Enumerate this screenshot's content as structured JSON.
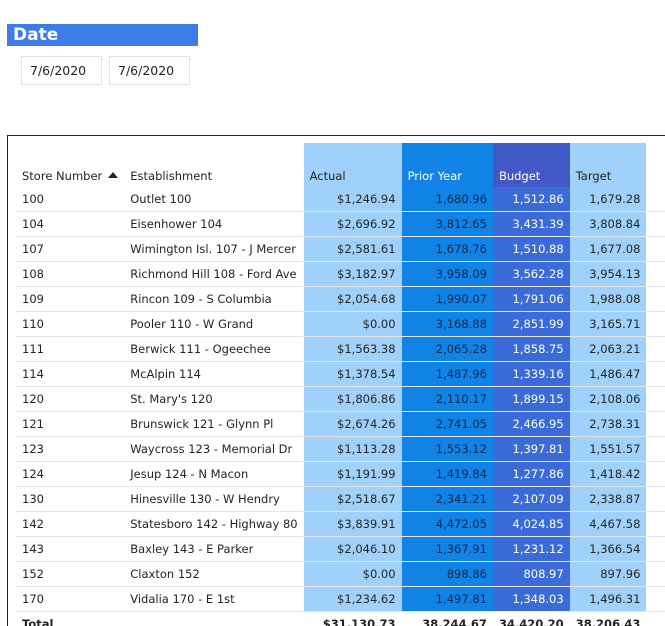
{
  "date_filter": {
    "title": "Date",
    "start": "7/6/2020",
    "end": "7/6/2020"
  },
  "table": {
    "headers": {
      "store_number": "Store Number",
      "establishment": "Establishment",
      "actual": "Actual",
      "prior_year": "Prior Year",
      "budget": "Budget",
      "target": "Target"
    },
    "sort": "ascending",
    "rows": [
      {
        "store": "100",
        "establishment": "Outlet 100",
        "actual": "$1,246.94",
        "prior": "1,680.96",
        "budget": "1,512.86",
        "target": "1,679.28"
      },
      {
        "store": "104",
        "establishment": "Eisenhower 104",
        "actual": "$2,696.92",
        "prior": "3,812.65",
        "budget": "3,431.39",
        "target": "3,808.84"
      },
      {
        "store": "107",
        "establishment": "Wimington Isl. 107 - J Mercer",
        "actual": "$2,581.61",
        "prior": "1,678.76",
        "budget": "1,510.88",
        "target": "1,677.08"
      },
      {
        "store": "108",
        "establishment": "Richmond Hill 108 - Ford Ave",
        "actual": "$3,182.97",
        "prior": "3,958.09",
        "budget": "3,562.28",
        "target": "3,954.13"
      },
      {
        "store": "109",
        "establishment": "Rincon 109 - S Columbia",
        "actual": "$2,054.68",
        "prior": "1,990.07",
        "budget": "1,791.06",
        "target": "1,988.08"
      },
      {
        "store": "110",
        "establishment": "Pooler 110 - W Grand",
        "actual": "$0.00",
        "prior": "3,168.88",
        "budget": "2,851.99",
        "target": "3,165.71"
      },
      {
        "store": "111",
        "establishment": "Berwick 111 - Ogeechee",
        "actual": "$1,563.38",
        "prior": "2,065.28",
        "budget": "1,858.75",
        "target": "2,063.21"
      },
      {
        "store": "114",
        "establishment": "McAlpin 114",
        "actual": "$1,378.54",
        "prior": "1,487.96",
        "budget": "1,339.16",
        "target": "1,486.47"
      },
      {
        "store": "120",
        "establishment": "St. Mary's 120",
        "actual": "$1,806.86",
        "prior": "2,110.17",
        "budget": "1,899.15",
        "target": "2,108.06"
      },
      {
        "store": "121",
        "establishment": "Brunswick 121 - Glynn Pl",
        "actual": "$2,674.26",
        "prior": "2,741.05",
        "budget": "2,466.95",
        "target": "2,738.31"
      },
      {
        "store": "123",
        "establishment": "Waycross 123 - Memorial Dr",
        "actual": "$1,113.28",
        "prior": "1,553.12",
        "budget": "1,397.81",
        "target": "1,551.57"
      },
      {
        "store": "124",
        "establishment": "Jesup 124 - N Macon",
        "actual": "$1,191.99",
        "prior": "1,419.84",
        "budget": "1,277.86",
        "target": "1,418.42"
      },
      {
        "store": "130",
        "establishment": "Hinesville 130 - W Hendry",
        "actual": "$2,518.67",
        "prior": "2,341.21",
        "budget": "2,107.09",
        "target": "2,338.87"
      },
      {
        "store": "142",
        "establishment": "Statesboro 142 - Highway 80",
        "actual": "$3,839.91",
        "prior": "4,472.05",
        "budget": "4,024.85",
        "target": "4,467.58"
      },
      {
        "store": "143",
        "establishment": "Baxley 143 - E Parker",
        "actual": "$2,046.10",
        "prior": "1,367.91",
        "budget": "1,231.12",
        "target": "1,366.54"
      },
      {
        "store": "152",
        "establishment": "Claxton 152",
        "actual": "$0.00",
        "prior": "898.86",
        "budget": "808.97",
        "target": "897.96"
      },
      {
        "store": "170",
        "establishment": "Vidalia 170 - E 1st",
        "actual": "$1,234.62",
        "prior": "1,497.81",
        "budget": "1,348.03",
        "target": "1,496.31"
      }
    ],
    "total": {
      "label": "Total",
      "actual": "$31,130.73",
      "prior": "38,244.67",
      "budget": "34,420.20",
      "target": "38,206.43"
    }
  },
  "colors": {
    "date_header": "#3d7de8",
    "actual_bg": "#9fd1fb",
    "prior_bg": "#1283e6",
    "budget_bg": "#3b6bd8",
    "target_bg": "#9fd1fb"
  }
}
